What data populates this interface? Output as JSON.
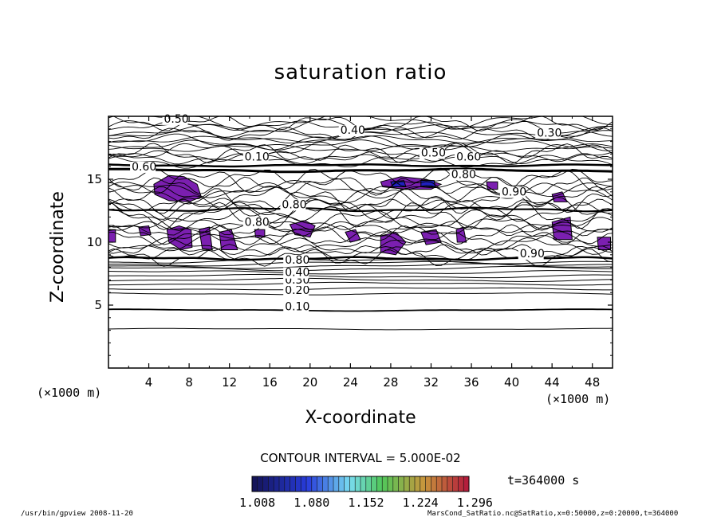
{
  "chart_data": {
    "type": "contour",
    "title": "saturation ratio",
    "xlabel": "X-coordinate",
    "ylabel": "Z-coordinate",
    "x_unit_left": "(×1000 m)",
    "x_unit_right": "(×1000 m)",
    "xlim": [
      0,
      50
    ],
    "ylim": [
      0,
      20
    ],
    "x_ticks": [
      4,
      8,
      12,
      16,
      20,
      24,
      28,
      32,
      36,
      40,
      44,
      48
    ],
    "y_ticks": [
      5,
      10,
      15
    ],
    "contour_interval_text": "CONTOUR INTERVAL = 5.000E-02",
    "time_text": "t=364000 s",
    "colorbar_ticks": [
      "1.008",
      "1.080",
      "1.152",
      "1.224",
      "1.296"
    ],
    "colorbar_range": [
      1.008,
      1.296
    ],
    "shade_color": "#7b1fb0",
    "shade_dark_color": "#2020c0",
    "contour_labels": [
      {
        "text": "0.10",
        "x": 17.5,
        "z": 4.6
      },
      {
        "text": "0.20",
        "x": 17.5,
        "z": 5.9
      },
      {
        "text": "0.30",
        "x": 17.5,
        "z": 6.7
      },
      {
        "text": "0.40",
        "x": 17.5,
        "z": 7.3
      },
      {
        "text": "0.80",
        "x": 17.5,
        "z": 8.3
      },
      {
        "text": "0.80",
        "x": 17.2,
        "z": 12.7
      },
      {
        "text": "0.80",
        "x": 13.5,
        "z": 11.3
      },
      {
        "text": "0.90",
        "x": 40.8,
        "z": 8.8
      },
      {
        "text": "0.90",
        "x": 39.0,
        "z": 13.7
      },
      {
        "text": "0.40",
        "x": 23.0,
        "z": 18.6
      },
      {
        "text": "0.50",
        "x": 31.0,
        "z": 16.8
      },
      {
        "text": "0.60",
        "x": 34.5,
        "z": 16.5
      },
      {
        "text": "0.30",
        "x": 42.5,
        "z": 18.4
      },
      {
        "text": "0.80",
        "x": 34.0,
        "z": 15.1
      },
      {
        "text": "0.50",
        "x": 5.5,
        "z": 19.5
      },
      {
        "text": "0.60",
        "x": 2.3,
        "z": 15.7
      },
      {
        "text": "0.10",
        "x": 13.5,
        "z": 16.5
      }
    ],
    "shaded_regions": [
      {
        "x": [
          4.5,
          6.0,
          7.5,
          8.8,
          9.2,
          8.0,
          6.0,
          4.6
        ],
        "z": [
          14.6,
          15.3,
          15.2,
          14.6,
          13.6,
          13.2,
          13.3,
          13.8
        ]
      },
      {
        "x": [
          3.0,
          4.0,
          4.2,
          3.2
        ],
        "z": [
          11.2,
          11.3,
          10.6,
          10.5
        ]
      },
      {
        "x": [
          5.8,
          7.0,
          8.2,
          8.3,
          7.2,
          6.0
        ],
        "z": [
          11.0,
          11.3,
          11.0,
          9.6,
          9.4,
          10.0
        ]
      },
      {
        "x": [
          9.0,
          10.0,
          10.3,
          9.3
        ],
        "z": [
          11.0,
          11.2,
          9.4,
          9.5
        ]
      },
      {
        "x": [
          11.0,
          12.2,
          12.8,
          11.2
        ],
        "z": [
          10.8,
          11.0,
          9.4,
          9.4
        ]
      },
      {
        "x": [
          18.0,
          19.5,
          20.5,
          20.0,
          18.5
        ],
        "z": [
          11.4,
          11.7,
          11.3,
          10.4,
          10.6
        ]
      },
      {
        "x": [
          23.5,
          24.5,
          25.0,
          24.0
        ],
        "z": [
          10.8,
          11.0,
          10.2,
          10.0
        ]
      },
      {
        "x": [
          27.0,
          28.5,
          29.5,
          28.5,
          27.0
        ],
        "z": [
          10.5,
          10.8,
          10.0,
          9.0,
          9.2
        ]
      },
      {
        "x": [
          31.0,
          32.5,
          33.0,
          31.5
        ],
        "z": [
          10.8,
          11.0,
          10.0,
          9.8
        ]
      },
      {
        "x": [
          34.5,
          35.2,
          35.5,
          34.6
        ],
        "z": [
          11.0,
          11.2,
          10.0,
          10.0
        ]
      },
      {
        "x": [
          27.0,
          29.0,
          31.5,
          33.0,
          32.0,
          29.5,
          27.2
        ],
        "z": [
          14.8,
          15.2,
          15.0,
          14.6,
          14.2,
          14.2,
          14.4
        ]
      },
      {
        "x": [
          37.5,
          38.6,
          38.6,
          37.6
        ],
        "z": [
          14.8,
          14.8,
          14.2,
          14.2
        ]
      },
      {
        "x": [
          44.0,
          45.0,
          45.5,
          44.2
        ],
        "z": [
          13.8,
          14.0,
          13.2,
          13.2
        ]
      },
      {
        "x": [
          44.0,
          45.8,
          46.0,
          44.2
        ],
        "z": [
          11.6,
          12.0,
          10.2,
          10.2
        ]
      },
      {
        "x": [
          48.5,
          49.8,
          49.8,
          48.6
        ],
        "z": [
          10.4,
          10.4,
          9.4,
          9.4
        ]
      },
      {
        "x": [
          0.0,
          0.7,
          0.7,
          0.0
        ],
        "z": [
          11.0,
          11.0,
          10.0,
          10.0
        ]
      },
      {
        "x": [
          14.5,
          15.5,
          15.5,
          14.6
        ],
        "z": [
          11.0,
          11.0,
          10.4,
          10.4
        ]
      }
    ],
    "dark_regions": [
      {
        "x": [
          28.0,
          29.3,
          29.5,
          28.2
        ],
        "z": [
          14.8,
          14.9,
          14.4,
          14.4
        ]
      },
      {
        "x": [
          31.0,
          32.3,
          32.4,
          31.0
        ],
        "z": [
          14.9,
          14.9,
          14.4,
          14.4
        ]
      }
    ]
  },
  "footer": {
    "left": "/usr/bin/gpview   2008-11-20",
    "right": "MarsCond_SatRatio.nc@SatRatio,x=0:50000,z=0:20000,t=364000"
  },
  "colors": {
    "frame": "#000000",
    "line": "#000000"
  }
}
